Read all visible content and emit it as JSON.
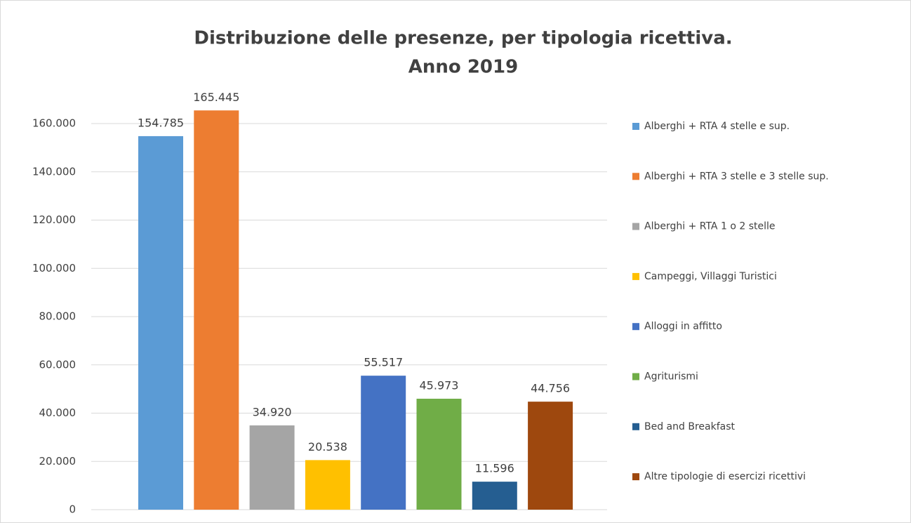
{
  "chart_data": {
    "type": "bar",
    "title": "Distribuzione delle presenze, per tipologia ricettiva.",
    "subtitle": "Anno 2019",
    "series": [
      {
        "name": "Alberghi + RTA 4 stelle e sup.",
        "color": "#5b9bd5",
        "values": [
          154785
        ],
        "value_labels": [
          "154.785"
        ]
      },
      {
        "name": "Alberghi + RTA 3 stelle e 3 stelle sup.",
        "color": "#ed7d31",
        "values": [
          165445
        ],
        "value_labels": [
          "165.445"
        ]
      },
      {
        "name": "Alberghi + RTA 1 o 2 stelle",
        "color": "#a5a5a5",
        "values": [
          34920
        ],
        "value_labels": [
          "34.920"
        ]
      },
      {
        "name": "Campeggi, Villaggi Turistici",
        "color": "#ffc000",
        "values": [
          20538
        ],
        "value_labels": [
          "20.538"
        ]
      },
      {
        "name": "Alloggi in affitto",
        "color": "#4472c4",
        "values": [
          55517
        ],
        "value_labels": [
          "55.517"
        ]
      },
      {
        "name": "Agriturismi",
        "color": "#70ad47",
        "values": [
          45973
        ],
        "value_labels": [
          "45.973"
        ]
      },
      {
        "name": "Bed and Breakfast",
        "color": "#255e91",
        "values": [
          11596
        ],
        "value_labels": [
          "11.596"
        ]
      },
      {
        "name": "Altre tipologie di esercizi ricettivi",
        "color": "#9e480e",
        "values": [
          44756
        ],
        "value_labels": [
          "44.756"
        ]
      }
    ],
    "ylim": [
      0,
      160000
    ],
    "yticks": [
      0,
      {
        "value": 20000,
        "label": "20.000"
      },
      {
        "value": 40000,
        "label": "40.000"
      },
      {
        "value": 60000,
        "label": "60.000"
      },
      {
        "value": 80000,
        "label": "80.000"
      },
      {
        "value": 100000,
        "label": "100.000"
      },
      {
        "value": 120000,
        "label": "120.000"
      },
      {
        "value": 140000,
        "label": "140.000"
      },
      {
        "value": 160000,
        "label": "160.000"
      }
    ],
    "grid": true,
    "legend": "right"
  }
}
